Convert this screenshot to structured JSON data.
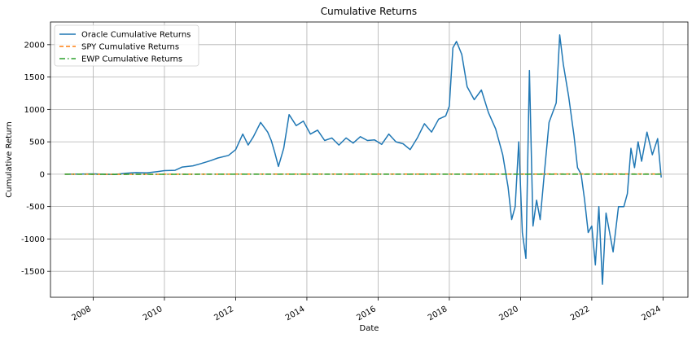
{
  "chart_data": {
    "type": "line",
    "title": "Cumulative Returns",
    "xlabel": "Date",
    "ylabel": "Cumulative Return",
    "xlim": [
      2006.8,
      2024.7
    ],
    "ylim": [
      -1900,
      2350
    ],
    "x_ticks": [
      2008,
      2010,
      2012,
      2014,
      2016,
      2018,
      2020,
      2022,
      2024
    ],
    "y_ticks": [
      -1500,
      -1000,
      -500,
      0,
      500,
      1000,
      1500,
      2000
    ],
    "grid": true,
    "legend_position": "top-left",
    "series": [
      {
        "name": "Oracle Cumulative Returns",
        "color": "#1f77b4",
        "style": "solid",
        "x": [
          2007.2,
          2007.6,
          2008.0,
          2008.3,
          2008.6,
          2008.9,
          2009.2,
          2009.5,
          2009.8,
          2010.0,
          2010.3,
          2010.5,
          2010.8,
          2011.0,
          2011.3,
          2011.5,
          2011.8,
          2012.0,
          2012.2,
          2012.35,
          2012.5,
          2012.7,
          2012.9,
          2013.0,
          2013.1,
          2013.2,
          2013.35,
          2013.5,
          2013.7,
          2013.9,
          2014.1,
          2014.3,
          2014.5,
          2014.7,
          2014.9,
          2015.1,
          2015.3,
          2015.5,
          2015.7,
          2015.9,
          2016.1,
          2016.3,
          2016.5,
          2016.7,
          2016.9,
          2017.1,
          2017.3,
          2017.5,
          2017.7,
          2017.9,
          2018.0,
          2018.1,
          2018.2,
          2018.35,
          2018.5,
          2018.7,
          2018.9,
          2019.1,
          2019.3,
          2019.5,
          2019.65,
          2019.75,
          2019.85,
          2019.95,
          2020.05,
          2020.15,
          2020.25,
          2020.35,
          2020.45,
          2020.55,
          2020.65,
          2020.8,
          2021.0,
          2021.1,
          2021.2,
          2021.35,
          2021.5,
          2021.6,
          2021.7,
          2021.8,
          2021.9,
          2022.0,
          2022.1,
          2022.2,
          2022.3,
          2022.4,
          2022.5,
          2022.6,
          2022.75,
          2022.9,
          2023.0,
          2023.1,
          2023.2,
          2023.3,
          2023.4,
          2023.55,
          2023.7,
          2023.85,
          2023.95
        ],
        "y": [
          0,
          2,
          5,
          0,
          -5,
          15,
          25,
          20,
          40,
          55,
          60,
          110,
          130,
          160,
          210,
          250,
          290,
          380,
          620,
          450,
          580,
          800,
          650,
          520,
          330,
          120,
          400,
          920,
          750,
          820,
          620,
          680,
          520,
          560,
          450,
          560,
          480,
          580,
          520,
          530,
          460,
          620,
          500,
          470,
          380,
          560,
          780,
          650,
          850,
          900,
          1050,
          1950,
          2050,
          1850,
          1350,
          1150,
          1300,
          950,
          700,
          300,
          -200,
          -700,
          -500,
          500,
          -900,
          -1300,
          1600,
          -800,
          -400,
          -700,
          -100,
          800,
          1100,
          2150,
          1700,
          1200,
          600,
          100,
          0,
          -400,
          -900,
          -800,
          -1400,
          -500,
          -1700,
          -600,
          -900,
          -1200,
          -500,
          -500,
          -300,
          400,
          100,
          500,
          200,
          650,
          300,
          550,
          -50
        ]
      },
      {
        "name": "SPY Cumulative Returns",
        "color": "#ff7f0e",
        "style": "dashed",
        "x": [
          2007.2,
          2009.0,
          2012.0,
          2016.0,
          2020.0,
          2023.95
        ],
        "y": [
          0,
          -1,
          1,
          2,
          3,
          4
        ]
      },
      {
        "name": "EWP Cumulative Returns",
        "color": "#2ca02c",
        "style": "dashdot",
        "x": [
          2007.2,
          2009.0,
          2012.0,
          2016.0,
          2020.0,
          2023.95
        ],
        "y": [
          0,
          -1,
          0,
          0,
          0,
          0
        ]
      }
    ]
  }
}
